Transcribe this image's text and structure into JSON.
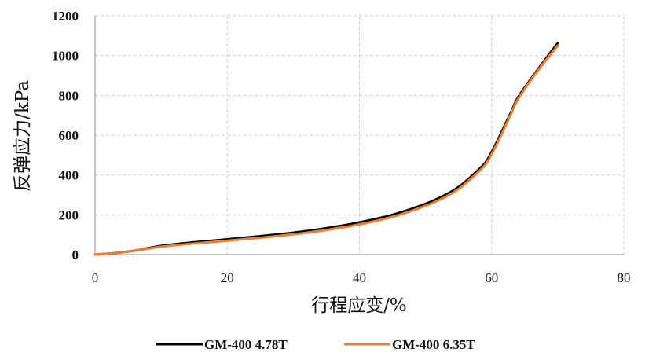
{
  "chart_data": {
    "type": "line",
    "xlabel": "行程应变/%",
    "ylabel": "反弹应力/kPa",
    "xlim": [
      0,
      80
    ],
    "ylim": [
      0,
      1200
    ],
    "xticks": [
      "0",
      "20",
      "40",
      "60",
      "80"
    ],
    "yticks": [
      "0",
      "200",
      "400",
      "600",
      "800",
      "1000",
      "1200"
    ],
    "grid": true,
    "legend_position": "bottom",
    "series": [
      {
        "name": "GM-400 4.78T",
        "color": "#000000",
        "x": [
          0,
          3,
          6,
          8,
          10,
          15,
          20,
          25,
          30,
          35,
          40,
          45,
          50,
          53,
          55,
          57,
          59,
          60,
          61,
          62,
          63,
          64,
          66,
          68,
          70
        ],
        "y": [
          0,
          8,
          20,
          32,
          44,
          62,
          77,
          93,
          110,
          133,
          162,
          200,
          255,
          300,
          340,
          395,
          460,
          515,
          580,
          650,
          720,
          790,
          885,
          975,
          1062
        ]
      },
      {
        "name": "GM-400 6.35T",
        "color": "#ED7D31",
        "x": [
          0,
          3,
          6,
          8,
          10,
          15,
          20,
          25,
          30,
          35,
          40,
          45,
          50,
          53,
          55,
          57,
          59,
          60,
          61,
          62,
          63,
          64,
          66,
          68,
          70
        ],
        "y": [
          0,
          8,
          20,
          30,
          40,
          56,
          70,
          85,
          102,
          124,
          152,
          190,
          245,
          290,
          330,
          385,
          450,
          505,
          570,
          640,
          712,
          782,
          880,
          968,
          1050
        ]
      }
    ]
  }
}
